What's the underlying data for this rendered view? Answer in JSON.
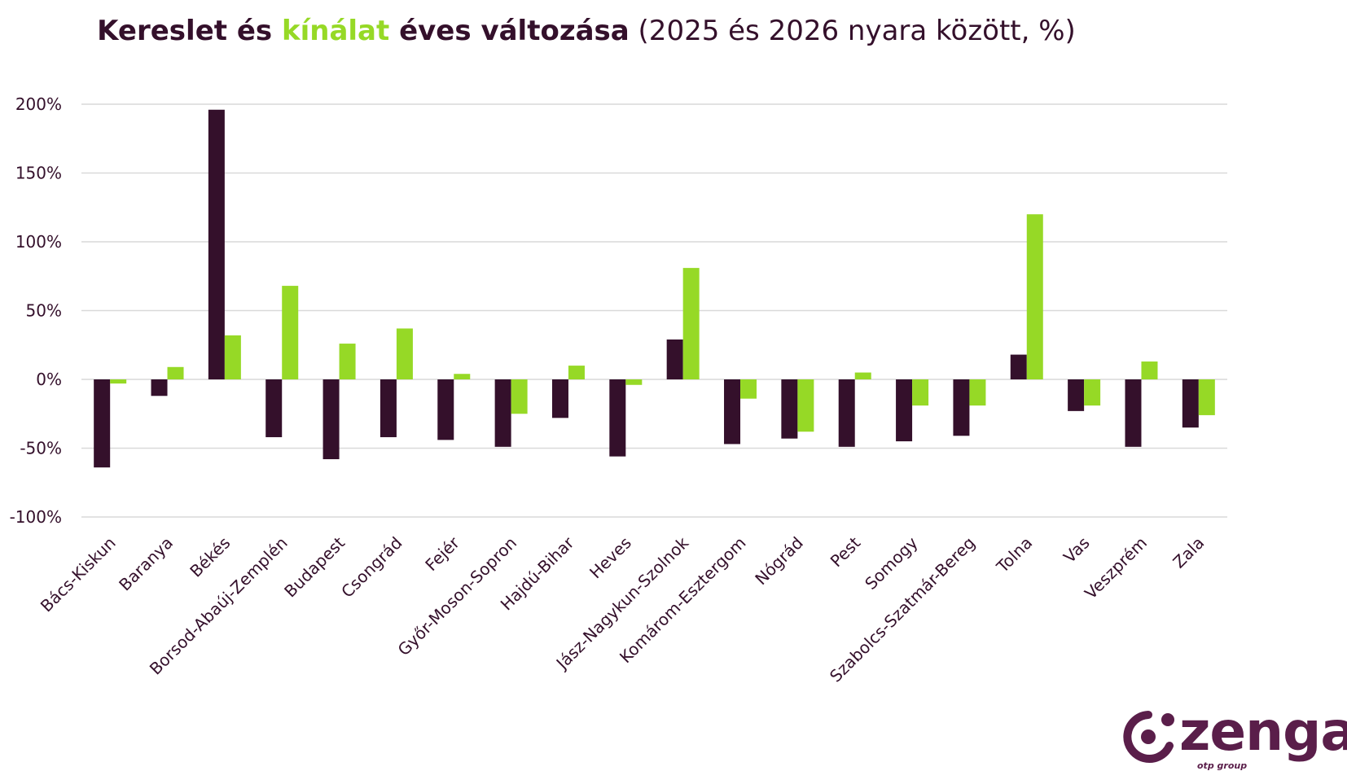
{
  "title": {
    "part1": "Kereslet és ",
    "part2": "kínálat",
    "part3": " éves változása",
    "part4": " (2025 és 2026 nyara között, %)"
  },
  "colors": {
    "demand": "#34102b",
    "supply": "#96d926",
    "grid": "#d9d9d9",
    "text": "#34102b"
  },
  "chart_data": {
    "type": "bar",
    "title": "Kereslet és kínálat éves változása (2025 és 2026 nyara között, %)",
    "xlabel": "",
    "ylabel": "",
    "ylim": [
      -100,
      200
    ],
    "yticks": [
      -100,
      -50,
      0,
      50,
      100,
      150,
      200
    ],
    "ytick_labels": [
      "-100%",
      "-50%",
      "0%",
      "50%",
      "100%",
      "150%",
      "200%"
    ],
    "grid": true,
    "categories": [
      "Bács-Kiskun",
      "Baranya",
      "Békés",
      "Borsod-Abaúj-Zemplén",
      "Budapest",
      "Csongrád",
      "Fejér",
      "Győr-Moson-Sopron",
      "Hajdú-Bihar",
      "Heves",
      "Jász-Nagykun-Szolnok",
      "Komárom-Esztergom",
      "Nógrád",
      "Pest",
      "Somogy",
      "Szabolcs-Szatmár-Bereg",
      "Tolna",
      "Vas",
      "Veszprém",
      "Zala"
    ],
    "series": [
      {
        "name": "Kereslet",
        "color": "#34102b",
        "values": [
          -64,
          -12,
          196,
          -42,
          -58,
          -42,
          -44,
          -49,
          -28,
          -56,
          29,
          -47,
          -43,
          -49,
          -45,
          -41,
          18,
          -23,
          -49,
          -35
        ]
      },
      {
        "name": "Kínálat",
        "color": "#96d926",
        "values": [
          -3,
          9,
          32,
          68,
          26,
          37,
          4,
          -25,
          10,
          -4,
          81,
          -14,
          -38,
          5,
          -19,
          -19,
          120,
          -19,
          13,
          -26
        ]
      }
    ]
  },
  "logo": {
    "word": "zenga",
    "sub": "otp group"
  }
}
